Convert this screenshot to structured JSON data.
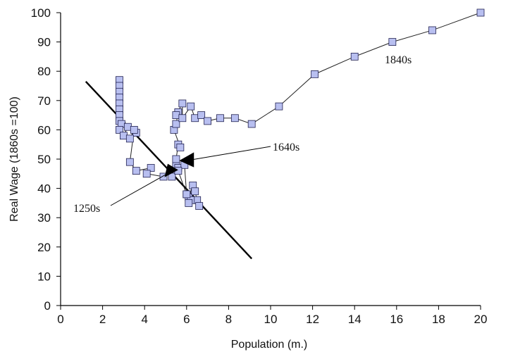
{
  "chart_data": {
    "type": "scatter",
    "title": "",
    "xlabel": "Population (m.)",
    "ylabel": "Real Wage (1860s =100)",
    "xlim": [
      0,
      20
    ],
    "ylim": [
      0,
      100
    ],
    "x_ticks": [
      0,
      2,
      4,
      6,
      8,
      10,
      12,
      14,
      16,
      18,
      20
    ],
    "y_ticks": [
      0,
      10,
      20,
      30,
      40,
      50,
      60,
      70,
      80,
      90,
      100
    ],
    "grid": "none",
    "legend": "none",
    "series": [
      {
        "points": [
          [
            2.8,
            77
          ],
          [
            2.8,
            75
          ],
          [
            2.8,
            73
          ],
          [
            2.8,
            71
          ],
          [
            2.8,
            69
          ],
          [
            2.8,
            67
          ],
          [
            2.8,
            65
          ],
          [
            2.8,
            63
          ],
          [
            2.9,
            62
          ],
          [
            2.8,
            60
          ],
          [
            3.0,
            58
          ],
          [
            3.2,
            61
          ],
          [
            3.6,
            59
          ],
          [
            3.3,
            57
          ],
          [
            3.5,
            60
          ],
          [
            3.3,
            49
          ],
          [
            3.6,
            46
          ],
          [
            4.3,
            47
          ],
          [
            4.1,
            45
          ],
          [
            4.9,
            44
          ],
          [
            5.3,
            46
          ],
          [
            5.5,
            48
          ],
          [
            5.3,
            44
          ],
          [
            5.6,
            47
          ],
          [
            5.9,
            48
          ],
          [
            6.0,
            38
          ],
          [
            6.1,
            37
          ],
          [
            6.3,
            41
          ],
          [
            6.4,
            39
          ],
          [
            6.5,
            36
          ],
          [
            6.6,
            34
          ],
          [
            6.2,
            36
          ],
          [
            6.1,
            35
          ],
          [
            6.0,
            38
          ],
          [
            5.6,
            46
          ],
          [
            5.5,
            50
          ],
          [
            5.6,
            55
          ],
          [
            5.7,
            54
          ],
          [
            5.4,
            60
          ],
          [
            5.5,
            62
          ],
          [
            5.6,
            66
          ],
          [
            5.5,
            65
          ],
          [
            5.8,
            69
          ],
          [
            5.8,
            64
          ],
          [
            6.2,
            68
          ],
          [
            6.4,
            64
          ],
          [
            6.7,
            65
          ],
          [
            7.0,
            63
          ],
          [
            7.6,
            64
          ],
          [
            8.3,
            64
          ],
          [
            9.1,
            62
          ],
          [
            10.4,
            68
          ],
          [
            12.1,
            79
          ],
          [
            14.0,
            85
          ],
          [
            15.8,
            90
          ],
          [
            17.7,
            94
          ],
          [
            20.0,
            100
          ]
        ]
      }
    ],
    "trend_line": {
      "from": [
        1.2,
        76.5
      ],
      "to": [
        9.1,
        16
      ]
    },
    "annotations": [
      {
        "text": "1840s"
      },
      {
        "text": "1640s"
      },
      {
        "text": "1250s"
      }
    ],
    "colors": {
      "marker_fill": "#b8bff0",
      "marker_stroke": "#202050",
      "series_line": "#222222",
      "trend_line": "#000000"
    }
  }
}
